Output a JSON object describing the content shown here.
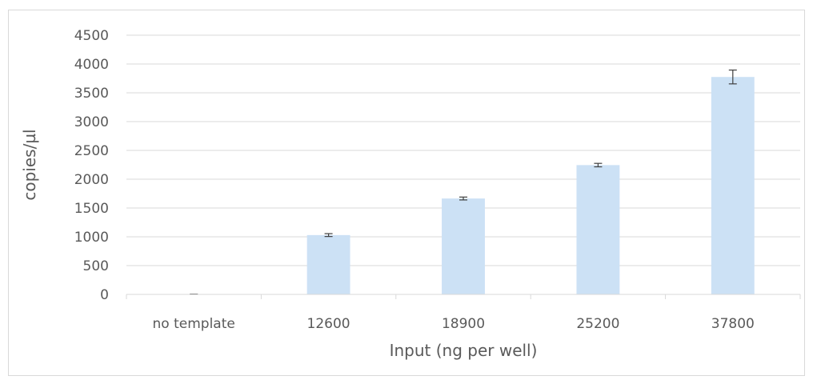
{
  "chart_data": {
    "type": "bar",
    "title": "",
    "xlabel": "Input (ng per well)",
    "ylabel": "copies/µl",
    "categories": [
      "no template",
      "12600",
      "18900",
      "25200",
      "37800"
    ],
    "values": [
      3,
      1030,
      1665,
      2245,
      3775
    ],
    "error": [
      2,
      25,
      25,
      30,
      120
    ],
    "ylim": [
      0,
      4500
    ],
    "yticks": [
      0,
      500,
      1000,
      1500,
      2000,
      2500,
      3000,
      3500,
      4000,
      4500
    ],
    "ytick_labels": [
      "0",
      "500",
      "1000",
      "1500",
      "2000",
      "2500",
      "3000",
      "3500",
      "4000",
      "4500"
    ],
    "grid": true,
    "legend": "none",
    "colors": {
      "bar": "#cce1f5",
      "grid": "#d9d9d9",
      "error_bar": "#404040",
      "text": "#595959"
    }
  }
}
